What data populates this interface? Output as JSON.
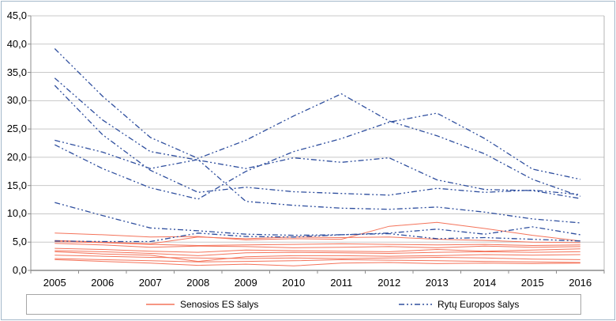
{
  "chart_data": {
    "type": "line",
    "title": "",
    "xlabel": "",
    "ylabel": "",
    "x_labels": [
      "2005",
      "2006",
      "2007",
      "2008",
      "2009",
      "2010",
      "2011",
      "2012",
      "2013",
      "2014",
      "2015",
      "2016"
    ],
    "y_tick_labels": [
      "45,0",
      "40,0",
      "35,0",
      "30,0",
      "25,0",
      "20,0",
      "15,0",
      "10,0",
      "5,0",
      "0,0"
    ],
    "ylim": [
      0,
      45
    ],
    "y_step": 5,
    "grid": true,
    "legend_position": "bottom",
    "decimal_separator": ",",
    "groups": [
      {
        "name": "Senosios ES šalys",
        "color": "#f4735a",
        "style": "solid",
        "series": [
          {
            "name": "line-1",
            "values": [
              6.6,
              6.3,
              5.9,
              6.0,
              5.4,
              5.6,
              5.5,
              7.8,
              8.5,
              7.4,
              6.2,
              5.2
            ]
          },
          {
            "name": "line-2",
            "values": [
              5.3,
              5.0,
              4.7,
              5.9,
              5.6,
              5.9,
              5.8,
              5.9,
              5.5,
              5.3,
              5.0,
              4.9
            ]
          },
          {
            "name": "line-3",
            "values": [
              5.1,
              4.9,
              4.6,
              4.4,
              4.5,
              4.6,
              4.7,
              4.6,
              4.5,
              4.6,
              4.4,
              4.5
            ]
          },
          {
            "name": "line-4",
            "values": [
              4.8,
              4.5,
              4.1,
              4.3,
              4.2,
              4.0,
              4.1,
              4.2,
              4.0,
              4.3,
              4.1,
              4.2
            ]
          },
          {
            "name": "line-5",
            "values": [
              3.9,
              3.7,
              3.4,
              3.2,
              3.6,
              3.5,
              3.4,
              3.3,
              3.7,
              3.4,
              3.6,
              3.8
            ]
          },
          {
            "name": "line-6",
            "values": [
              3.5,
              3.3,
              3.0,
              2.6,
              3.1,
              3.2,
              3.1,
              3.0,
              3.2,
              3.3,
              3.2,
              3.3
            ]
          },
          {
            "name": "line-7",
            "values": [
              3.3,
              2.9,
              2.7,
              1.6,
              2.4,
              2.6,
              2.6,
              2.5,
              2.6,
              2.8,
              2.7,
              2.8
            ]
          },
          {
            "name": "line-8",
            "values": [
              2.7,
              2.5,
              2.3,
              2.2,
              2.1,
              2.2,
              2.1,
              2.2,
              2.3,
              2.2,
              2.0,
              1.9
            ]
          },
          {
            "name": "line-9",
            "values": [
              2.1,
              1.9,
              1.7,
              1.5,
              1.6,
              1.7,
              1.9,
              1.8,
              1.7,
              1.6,
              1.5,
              1.4
            ]
          },
          {
            "name": "line-10",
            "values": [
              1.9,
              1.6,
              1.3,
              0.9,
              1.1,
              0.8,
              1.3,
              1.4,
              1.2,
              1.3,
              1.2,
              1.3
            ]
          }
        ]
      },
      {
        "name": "Rytų Europos šalys",
        "color": "#2e4e9e",
        "style": "dash-dot-dot",
        "series": [
          {
            "name": "line-11",
            "values": [
              39.2,
              30.8,
              23.5,
              19.8,
              23.0,
              27.3,
              31.2,
              26.4,
              23.8,
              20.6,
              16.1,
              13.1
            ]
          },
          {
            "name": "line-12",
            "values": [
              22.2,
              18.0,
              14.6,
              12.6,
              17.5,
              21.0,
              23.3,
              26.2,
              27.8,
              23.3,
              17.9,
              16.1
            ]
          },
          {
            "name": "line-13",
            "values": [
              34.0,
              26.6,
              21.0,
              19.5,
              18.0,
              19.9,
              19.1,
              19.9,
              16.0,
              14.3,
              14.1,
              12.7
            ]
          },
          {
            "name": "line-14",
            "values": [
              32.7,
              24.0,
              17.7,
              13.8,
              14.7,
              13.9,
              13.6,
              13.3,
              14.5,
              13.8,
              14.2,
              13.4
            ]
          },
          {
            "name": "line-15",
            "values": [
              23.0,
              20.9,
              18.0,
              19.6,
              12.2,
              11.5,
              11.0,
              10.8,
              11.2,
              10.3,
              9.1,
              8.4
            ]
          },
          {
            "name": "line-16",
            "values": [
              12.0,
              9.7,
              7.5,
              7.0,
              6.4,
              6.2,
              6.3,
              6.6,
              7.3,
              6.4,
              7.7,
              6.3
            ]
          },
          {
            "name": "line-17",
            "values": [
              5.2,
              5.1,
              5.1,
              6.6,
              6.0,
              5.9,
              6.3,
              6.5,
              5.6,
              5.8,
              5.5,
              5.2
            ]
          }
        ]
      }
    ],
    "colors": {
      "gridline": "#c8c8c8",
      "axis": "#8c8c8c",
      "plot_border": "#b4b4b4",
      "outer_border": "#a3b8ca",
      "background": "#ffffff",
      "text": "#000000"
    }
  },
  "legend": {
    "items": [
      {
        "label": "Senosios ES šalys"
      },
      {
        "label": "Rytų Europos šalys"
      }
    ]
  }
}
